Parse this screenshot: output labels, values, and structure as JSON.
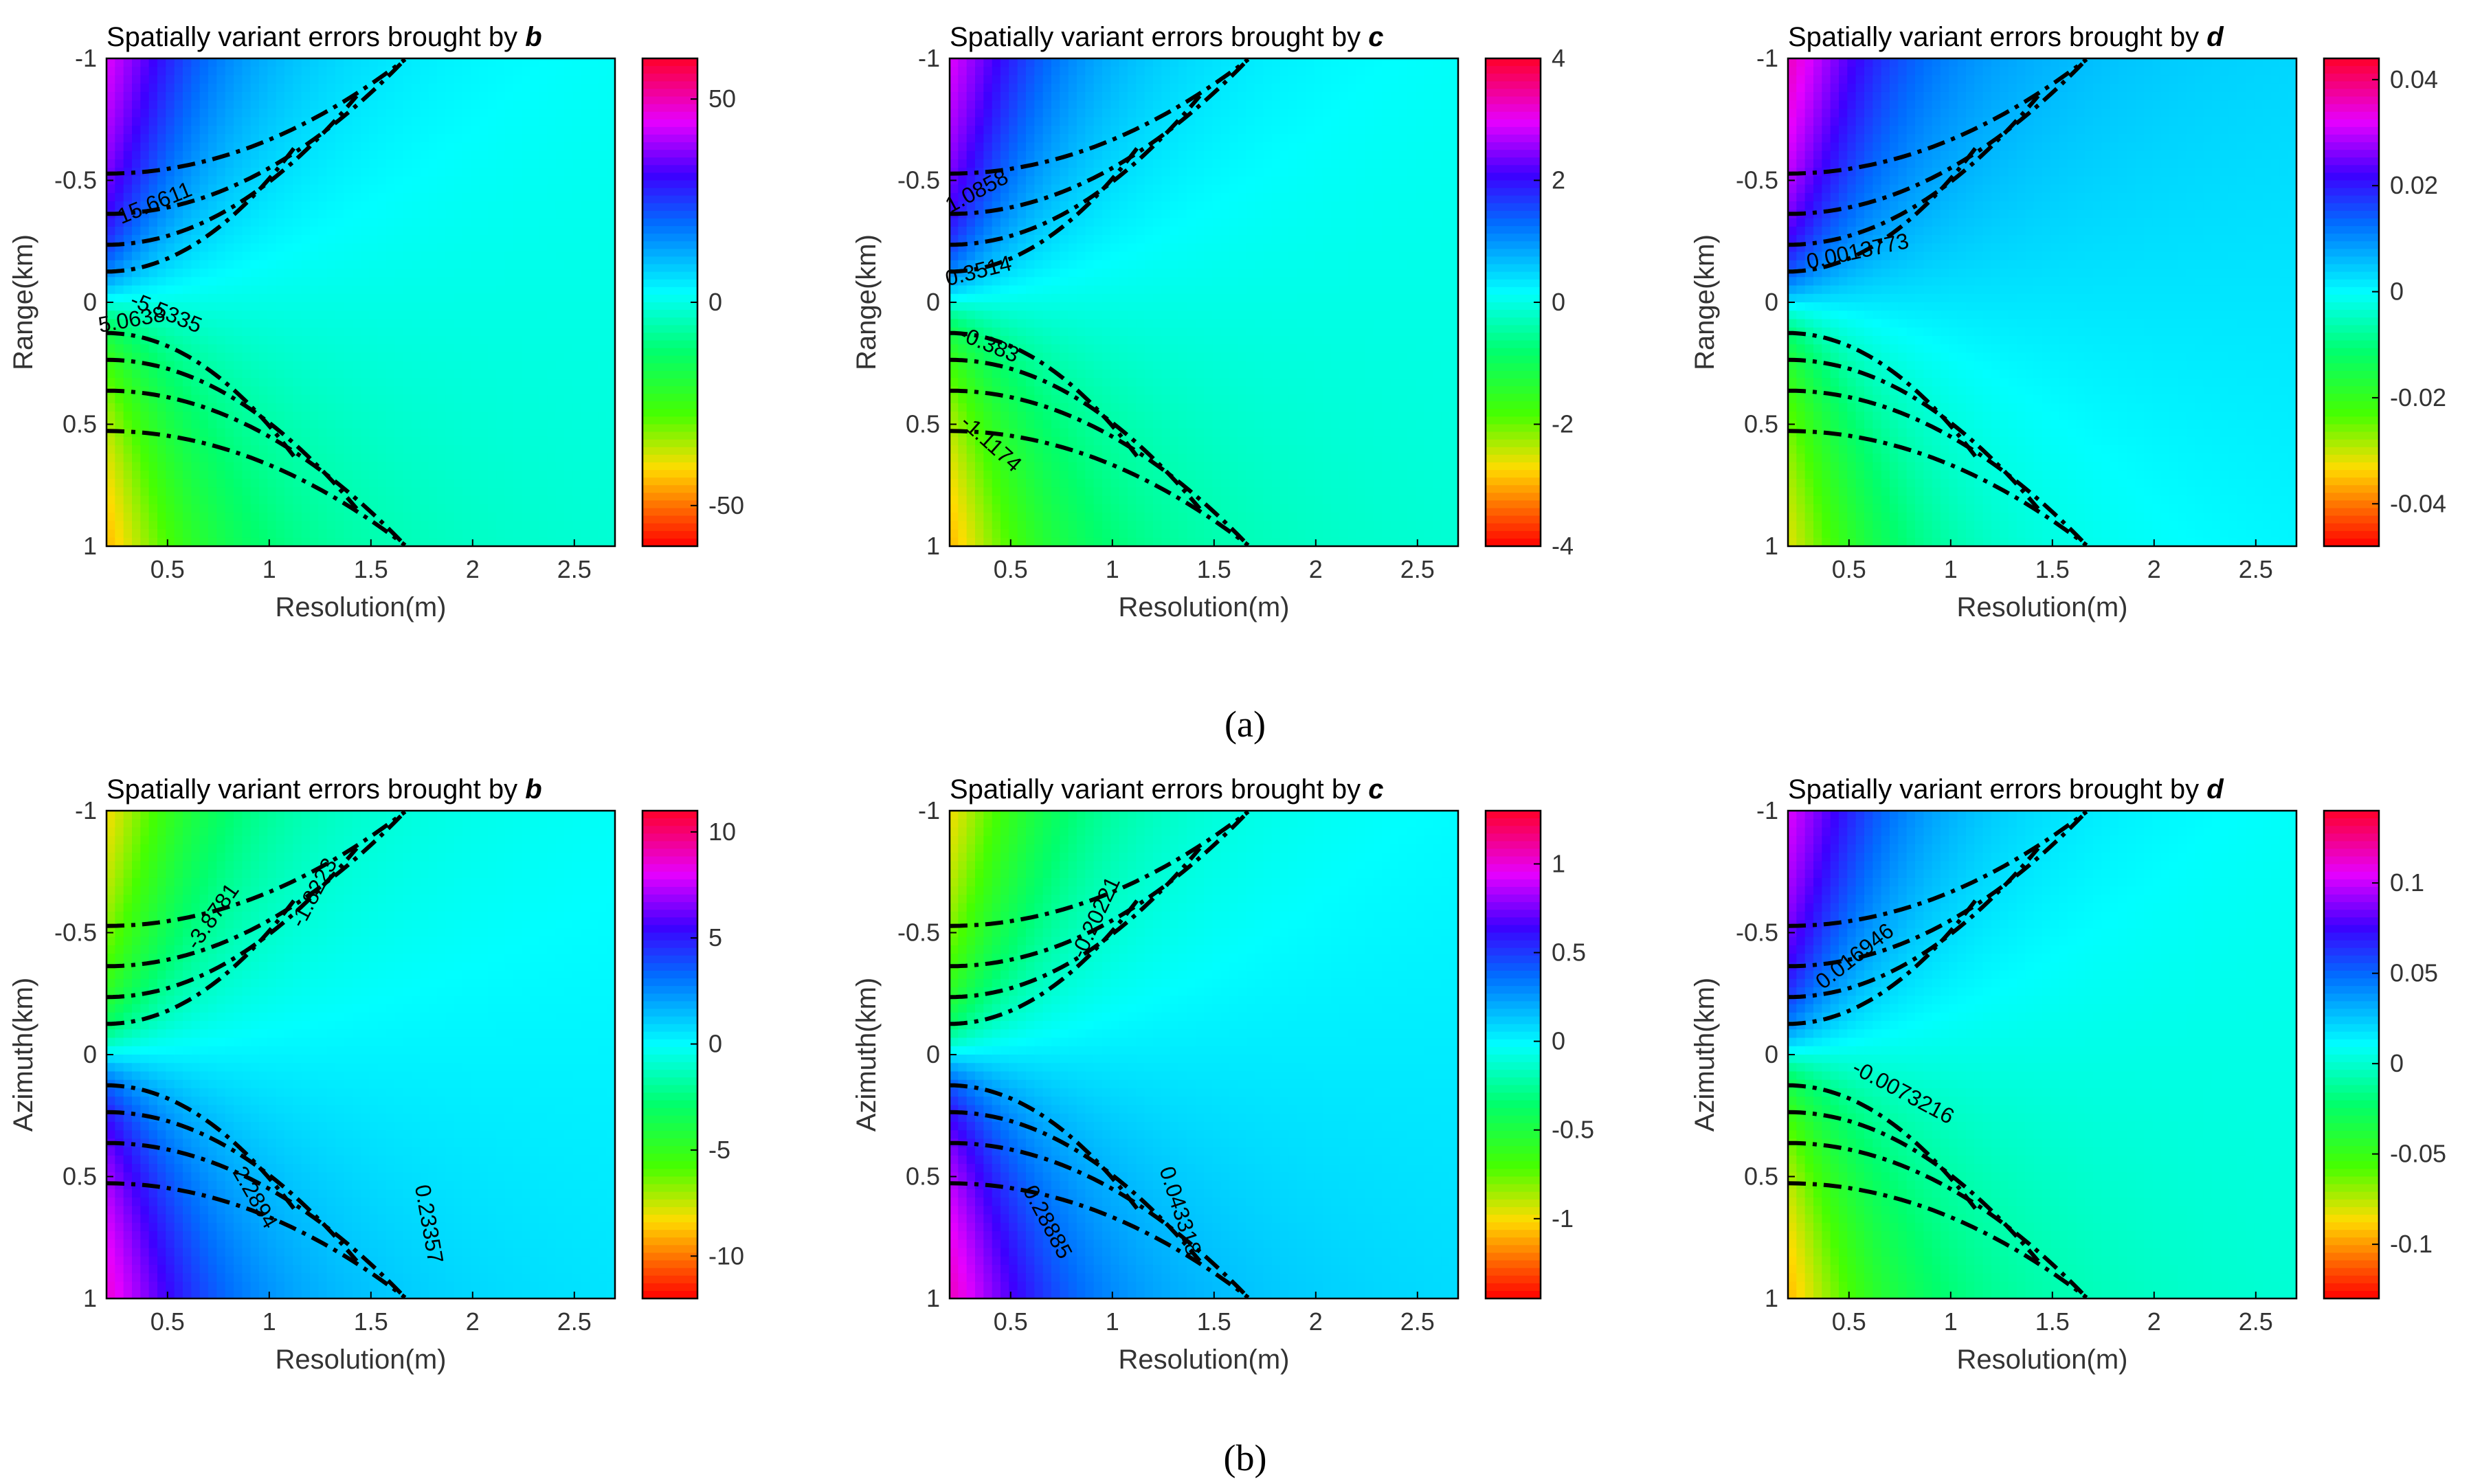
{
  "figure": {
    "captions": [
      "(a)",
      "(b)"
    ]
  },
  "chart_data": [
    {
      "type": "heatmap",
      "row": "a",
      "title": "Spatially variant errors brought by",
      "title_var": "b",
      "xlabel": "Resolution(m)",
      "ylabel": "Range(km)",
      "xlim": [
        0.2,
        2.7
      ],
      "ylim": [
        -1,
        1
      ],
      "xticks": [
        0.5,
        1,
        1.5,
        2,
        2.5
      ],
      "xtick_labels": [
        "0.5",
        "1",
        "1.5",
        "2",
        "2.5"
      ],
      "yticks": [
        -1,
        -0.5,
        0,
        0.5,
        1
      ],
      "ytick_labels": [
        "-1",
        "-0.5",
        "0",
        "0.5",
        "1"
      ],
      "y_reversed": true,
      "colorbar": {
        "min": -60,
        "max": 60,
        "ticks": [
          50,
          0,
          -50
        ],
        "tick_labels": [
          "50",
          "0",
          "-50"
        ],
        "colormap": "hsv"
      },
      "field": {
        "sign": 1,
        "offset": 0,
        "scale": 60
      },
      "contour_labels": [
        {
          "text": "15.6611",
          "x": 0.45,
          "y": -0.38,
          "angle": -22
        },
        {
          "text": "5.0638",
          "x": 0.33,
          "y": 0.1,
          "angle": -10
        },
        {
          "text": "-5.5335",
          "x": 0.48,
          "y": 0.07,
          "angle": 22
        }
      ]
    },
    {
      "type": "heatmap",
      "row": "a",
      "title": "Spatially variant errors brought by",
      "title_var": "c",
      "xlabel": "Resolution(m)",
      "ylabel": "Range(km)",
      "xlim": [
        0.2,
        2.7
      ],
      "ylim": [
        -1,
        1
      ],
      "xticks": [
        0.5,
        1,
        1.5,
        2,
        2.5
      ],
      "xtick_labels": [
        "0.5",
        "1",
        "1.5",
        "2",
        "2.5"
      ],
      "yticks": [
        -1,
        -0.5,
        0,
        0.5,
        1
      ],
      "ytick_labels": [
        "-1",
        "-0.5",
        "0",
        "0.5",
        "1"
      ],
      "y_reversed": true,
      "colorbar": {
        "min": -4,
        "max": 4,
        "ticks": [
          4,
          2,
          0,
          -2,
          -4
        ],
        "tick_labels": [
          "4",
          "2",
          "0",
          "-2",
          "-4"
        ],
        "colormap": "hsv"
      },
      "field": {
        "sign": 1,
        "offset": 0,
        "scale": 4
      },
      "contour_labels": [
        {
          "text": "1.0858",
          "x": 0.35,
          "y": -0.43,
          "angle": -28
        },
        {
          "text": "0.3514",
          "x": 0.35,
          "y": -0.1,
          "angle": -14
        },
        {
          "text": "-0.383",
          "x": 0.38,
          "y": 0.2,
          "angle": 22
        },
        {
          "text": "-1.1174",
          "x": 0.38,
          "y": 0.6,
          "angle": 42
        }
      ]
    },
    {
      "type": "heatmap",
      "row": "a",
      "title": "Spatially variant errors brought by",
      "title_var": "d",
      "xlabel": "Resolution(m)",
      "ylabel": "Range(km)",
      "xlim": [
        0.2,
        2.7
      ],
      "ylim": [
        -1,
        1
      ],
      "xticks": [
        0.5,
        1,
        1.5,
        2,
        2.5
      ],
      "xtick_labels": [
        "0.5",
        "1",
        "1.5",
        "2",
        "2.5"
      ],
      "yticks": [
        -1,
        -0.5,
        0,
        0.5,
        1
      ],
      "ytick_labels": [
        "-1",
        "-0.5",
        "0",
        "0.5",
        "1"
      ],
      "y_reversed": true,
      "colorbar": {
        "min": -0.048,
        "max": 0.044,
        "ticks": [
          0.04,
          0.02,
          0,
          -0.02,
          -0.04
        ],
        "tick_labels": [
          "0.04",
          "0.02",
          "0",
          "-0.02",
          "-0.04"
        ],
        "colormap": "hsv"
      },
      "field": {
        "sign": 1,
        "offset": 0.002,
        "scale": 0.046
      },
      "contour_labels": [
        {
          "text": "0.0013773",
          "x": 0.55,
          "y": -0.18,
          "angle": -12
        }
      ]
    },
    {
      "type": "heatmap",
      "row": "b",
      "title": "Spatially variant errors brought by",
      "title_var": "b",
      "xlabel": "Resolution(m)",
      "ylabel": "Azimuth(km)",
      "xlim": [
        0.2,
        2.7
      ],
      "ylim": [
        -1,
        1
      ],
      "xticks": [
        0.5,
        1,
        1.5,
        2,
        2.5
      ],
      "xtick_labels": [
        "0.5",
        "1",
        "1.5",
        "2",
        "2.5"
      ],
      "yticks": [
        -1,
        -0.5,
        0,
        0.5,
        1
      ],
      "ytick_labels": [
        "-1",
        "-0.5",
        "0",
        "0.5",
        "1"
      ],
      "y_reversed": true,
      "colorbar": {
        "min": -12,
        "max": 11,
        "ticks": [
          10,
          5,
          0,
          -5,
          -10
        ],
        "tick_labels": [
          "10",
          "5",
          "0",
          "-5",
          "-10"
        ],
        "colormap": "hsv"
      },
      "field": {
        "sign": -1,
        "offset": 0.2,
        "scale": 11.5
      },
      "contour_labels": [
        {
          "text": "-3.8781",
          "x": 0.75,
          "y": -0.55,
          "angle": -55
        },
        {
          "text": "-1.8223",
          "x": 1.25,
          "y": -0.65,
          "angle": -62
        },
        {
          "text": "2.2894",
          "x": 0.9,
          "y": 0.6,
          "angle": 60
        },
        {
          "text": "0.23357",
          "x": 1.75,
          "y": 0.7,
          "angle": 80
        }
      ]
    },
    {
      "type": "heatmap",
      "row": "b",
      "title": "Spatially variant errors brought by",
      "title_var": "c",
      "xlabel": "Resolution(m)",
      "ylabel": "Azimuth(km)",
      "xlim": [
        0.2,
        2.7
      ],
      "ylim": [
        -1,
        1
      ],
      "xticks": [
        0.5,
        1,
        1.5,
        2,
        2.5
      ],
      "xtick_labels": [
        "0.5",
        "1",
        "1.5",
        "2",
        "2.5"
      ],
      "yticks": [
        -1,
        -0.5,
        0,
        0.5,
        1
      ],
      "ytick_labels": [
        "-1",
        "-0.5",
        "0",
        "0.5",
        "1"
      ],
      "y_reversed": true,
      "colorbar": {
        "min": -1.45,
        "max": 1.3,
        "ticks": [
          1,
          0.5,
          0,
          -0.5,
          -1
        ],
        "tick_labels": [
          "1",
          "0.5",
          "0",
          "-0.5",
          "-1"
        ],
        "colormap": "hsv"
      },
      "field": {
        "sign": -1,
        "offset": 0.03,
        "scale": 1.4
      },
      "contour_labels": [
        {
          "text": "-0.20221",
          "x": 0.95,
          "y": -0.55,
          "angle": -65
        },
        {
          "text": "0.28885",
          "x": 0.65,
          "y": 0.7,
          "angle": 62
        },
        {
          "text": "0.043318",
          "x": 1.3,
          "y": 0.65,
          "angle": 72
        }
      ]
    },
    {
      "type": "heatmap",
      "row": "b",
      "title": "Spatially variant errors brought by",
      "title_var": "d",
      "xlabel": "Resolution(m)",
      "ylabel": "Azimuth(km)",
      "xlim": [
        0.2,
        2.7
      ],
      "ylim": [
        -1,
        1
      ],
      "xticks": [
        0.5,
        1,
        1.5,
        2,
        2.5
      ],
      "xtick_labels": [
        "0.5",
        "1",
        "1.5",
        "2",
        "2.5"
      ],
      "yticks": [
        -1,
        -0.5,
        0,
        0.5,
        1
      ],
      "ytick_labels": [
        "-1",
        "-0.5",
        "0",
        "0.5",
        "1"
      ],
      "y_reversed": true,
      "colorbar": {
        "min": -0.13,
        "max": 0.14,
        "ticks": [
          0.1,
          0.05,
          0,
          -0.05,
          -0.1
        ],
        "tick_labels": [
          "0.1",
          "0.05",
          "0",
          "-0.05",
          "-0.1"
        ],
        "colormap": "hsv"
      },
      "field": {
        "sign": 1,
        "offset": 0.005,
        "scale": 0.135
      },
      "contour_labels": [
        {
          "text": "0.016946",
          "x": 0.55,
          "y": -0.38,
          "angle": -38
        },
        {
          "text": "-0.0073216",
          "x": 0.75,
          "y": 0.18,
          "angle": 28
        }
      ]
    }
  ]
}
